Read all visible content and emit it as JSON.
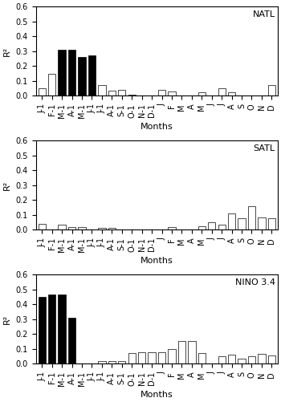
{
  "chart_data": [
    {
      "type": "bar",
      "title": "NATL",
      "categories": [
        "J-1",
        "F-1",
        "M-1",
        "A-1",
        "M-1",
        "J-1",
        "J-1",
        "A-1",
        "S-1",
        "O-1",
        "N-1",
        "D-1",
        "J",
        "F",
        "M",
        "A",
        "M",
        "J",
        "J",
        "A",
        "S",
        "O",
        "N",
        "D"
      ],
      "values": [
        0.05,
        0.15,
        0.31,
        0.31,
        0.26,
        0.27,
        0.07,
        0.035,
        0.04,
        0.01,
        0.005,
        0.005,
        0.04,
        0.03,
        0.005,
        0.005,
        0.025,
        0.005,
        0.05,
        0.025,
        0.005,
        0.005,
        0.005,
        0.07
      ],
      "colors": [
        "#ffffff",
        "#ffffff",
        "#000000",
        "#000000",
        "#000000",
        "#000000",
        "#ffffff",
        "#ffffff",
        "#ffffff",
        "#ffffff",
        "#ffffff",
        "#ffffff",
        "#ffffff",
        "#ffffff",
        "#ffffff",
        "#ffffff",
        "#ffffff",
        "#ffffff",
        "#ffffff",
        "#ffffff",
        "#ffffff",
        "#ffffff",
        "#ffffff",
        "#ffffff"
      ],
      "x_label": "Months",
      "y_label": "R²",
      "ylim": [
        0,
        0.6
      ],
      "yticks": [
        0.0,
        0.1,
        0.2,
        0.3,
        0.4,
        0.5,
        0.6
      ],
      "grid": false
    },
    {
      "type": "bar",
      "title": "SATL",
      "categories": [
        "J-1",
        "F-1",
        "M-1",
        "A-1",
        "M-1",
        "J-1",
        "J-1",
        "A-1",
        "S-1",
        "O-1",
        "N-1",
        "D-1",
        "J",
        "F",
        "M",
        "A",
        "M",
        "J",
        "J",
        "A",
        "S",
        "O",
        "N",
        "D"
      ],
      "values": [
        0.04,
        0.005,
        0.035,
        0.02,
        0.02,
        0.005,
        0.015,
        0.015,
        0.005,
        0.005,
        0.005,
        0.005,
        0.005,
        0.02,
        0.005,
        0.005,
        0.025,
        0.05,
        0.035,
        0.11,
        0.08,
        0.16,
        0.085,
        0.08
      ],
      "colors": [
        "#ffffff",
        "#ffffff",
        "#ffffff",
        "#ffffff",
        "#ffffff",
        "#ffffff",
        "#ffffff",
        "#ffffff",
        "#ffffff",
        "#ffffff",
        "#ffffff",
        "#ffffff",
        "#ffffff",
        "#ffffff",
        "#ffffff",
        "#ffffff",
        "#ffffff",
        "#ffffff",
        "#ffffff",
        "#ffffff",
        "#ffffff",
        "#ffffff",
        "#ffffff",
        "#ffffff"
      ],
      "x_label": "Months",
      "y_label": "R²",
      "ylim": [
        0,
        0.6
      ],
      "yticks": [
        0.0,
        0.1,
        0.2,
        0.3,
        0.4,
        0.5,
        0.6
      ],
      "grid": false
    },
    {
      "type": "bar",
      "title": "NINO 3.4",
      "categories": [
        "J-1",
        "F-1",
        "M-1",
        "A-1",
        "M-1",
        "J-1",
        "J-1",
        "A-1",
        "S-1",
        "O-1",
        "N-1",
        "D-1",
        "J",
        "F",
        "M",
        "A",
        "M",
        "J",
        "J",
        "A",
        "S",
        "O",
        "N",
        "D"
      ],
      "values": [
        0.45,
        0.465,
        0.465,
        0.31,
        0.005,
        0.005,
        0.02,
        0.02,
        0.02,
        0.07,
        0.08,
        0.08,
        0.08,
        0.1,
        0.155,
        0.155,
        0.07,
        0.005,
        0.05,
        0.06,
        0.035,
        0.05,
        0.065,
        0.055
      ],
      "colors": [
        "#000000",
        "#000000",
        "#000000",
        "#000000",
        "#ffffff",
        "#ffffff",
        "#ffffff",
        "#ffffff",
        "#ffffff",
        "#ffffff",
        "#ffffff",
        "#ffffff",
        "#ffffff",
        "#ffffff",
        "#ffffff",
        "#ffffff",
        "#ffffff",
        "#ffffff",
        "#ffffff",
        "#ffffff",
        "#ffffff",
        "#ffffff",
        "#ffffff",
        "#ffffff"
      ],
      "x_label": "Months",
      "y_label": "R²",
      "ylim": [
        0,
        0.6
      ],
      "yticks": [
        0.0,
        0.1,
        0.2,
        0.3,
        0.4,
        0.5,
        0.6
      ],
      "grid": false
    }
  ]
}
